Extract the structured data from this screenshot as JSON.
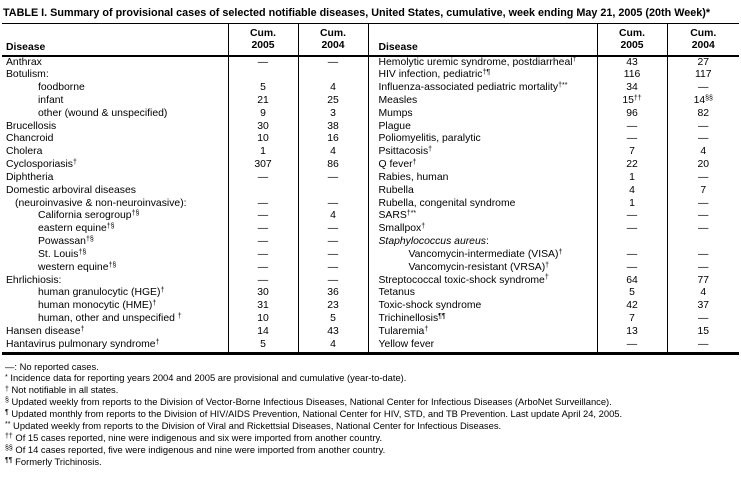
{
  "colors": {
    "text": "#000000",
    "background": "#ffffff",
    "border": "#000000"
  },
  "title": "TABLE I. Summary of provisional cases of selected notifiable diseases, United States, cumulative, week ending May 21, 2005 (20th Week)*",
  "header": {
    "disease": "Disease",
    "cum_label": "Cum.",
    "year_2005": "2005",
    "year_2004": "2004"
  },
  "rows": [
    {
      "left": {
        "name": "Anthrax",
        "sup": "",
        "indent": 0,
        "v05": "—",
        "v05sup": "",
        "v04": "—",
        "v04sup": ""
      },
      "right": {
        "name": "Hemolytic uremic syndrome, postdiarrheal",
        "sup": "†",
        "indent": 0,
        "v05": "43",
        "v05sup": "",
        "v04": "27",
        "v04sup": ""
      }
    },
    {
      "left": {
        "name": "Botulism:",
        "sup": "",
        "indent": 0,
        "v05": "",
        "v05sup": "",
        "v04": "",
        "v04sup": ""
      },
      "right": {
        "name": "HIV infection, pediatric",
        "sup": "†¶",
        "indent": 0,
        "v05": "116",
        "v05sup": "",
        "v04": "117",
        "v04sup": ""
      }
    },
    {
      "left": {
        "name": "foodborne",
        "sup": "",
        "indent": 2,
        "v05": "5",
        "v05sup": "",
        "v04": "4",
        "v04sup": ""
      },
      "right": {
        "name": "Influenza-associated pediatric mortality",
        "sup": "†**",
        "indent": 0,
        "v05": "34",
        "v05sup": "",
        "v04": "—",
        "v04sup": ""
      }
    },
    {
      "left": {
        "name": "infant",
        "sup": "",
        "indent": 2,
        "v05": "21",
        "v05sup": "",
        "v04": "25",
        "v04sup": ""
      },
      "right": {
        "name": "Measles",
        "sup": "",
        "indent": 0,
        "v05": "15",
        "v05sup": "††",
        "v04": "14",
        "v04sup": "§§"
      }
    },
    {
      "left": {
        "name": "other (wound & unspecified)",
        "sup": "",
        "indent": 2,
        "v05": "9",
        "v05sup": "",
        "v04": "3",
        "v04sup": ""
      },
      "right": {
        "name": "Mumps",
        "sup": "",
        "indent": 0,
        "v05": "96",
        "v05sup": "",
        "v04": "82",
        "v04sup": ""
      }
    },
    {
      "left": {
        "name": "Brucellosis",
        "sup": "",
        "indent": 0,
        "v05": "30",
        "v05sup": "",
        "v04": "38",
        "v04sup": ""
      },
      "right": {
        "name": "Plague",
        "sup": "",
        "indent": 0,
        "v05": "—",
        "v05sup": "",
        "v04": "—",
        "v04sup": ""
      }
    },
    {
      "left": {
        "name": "Chancroid",
        "sup": "",
        "indent": 0,
        "v05": "10",
        "v05sup": "",
        "v04": "16",
        "v04sup": ""
      },
      "right": {
        "name": "Poliomyelitis, paralytic",
        "sup": "",
        "indent": 0,
        "v05": "—",
        "v05sup": "",
        "v04": "—",
        "v04sup": ""
      }
    },
    {
      "left": {
        "name": "Cholera",
        "sup": "",
        "indent": 0,
        "v05": "1",
        "v05sup": "",
        "v04": "4",
        "v04sup": ""
      },
      "right": {
        "name": "Psittacosis",
        "sup": "†",
        "indent": 0,
        "v05": "7",
        "v05sup": "",
        "v04": "4",
        "v04sup": ""
      }
    },
    {
      "left": {
        "name": "Cyclosporiasis",
        "sup": "†",
        "indent": 0,
        "v05": "307",
        "v05sup": "",
        "v04": "86",
        "v04sup": ""
      },
      "right": {
        "name": "Q fever",
        "sup": "†",
        "indent": 0,
        "v05": "22",
        "v05sup": "",
        "v04": "20",
        "v04sup": ""
      }
    },
    {
      "left": {
        "name": "Diphtheria",
        "sup": "",
        "indent": 0,
        "v05": "—",
        "v05sup": "",
        "v04": "—",
        "v04sup": ""
      },
      "right": {
        "name": "Rabies, human",
        "sup": "",
        "indent": 0,
        "v05": "1",
        "v05sup": "",
        "v04": "—",
        "v04sup": ""
      }
    },
    {
      "left": {
        "name": "Domestic arboviral diseases",
        "sup": "",
        "indent": 0,
        "v05": "",
        "v05sup": "",
        "v04": "",
        "v04sup": ""
      },
      "right": {
        "name": "Rubella",
        "sup": "",
        "indent": 0,
        "v05": "4",
        "v05sup": "",
        "v04": "7",
        "v04sup": ""
      }
    },
    {
      "left": {
        "name": "(neuroinvasive & non-neuroinvasive):",
        "sup": "",
        "indent": 1,
        "v05": "—",
        "v05sup": "",
        "v04": "—",
        "v04sup": ""
      },
      "right": {
        "name": "Rubella, congenital syndrome",
        "sup": "",
        "indent": 0,
        "v05": "1",
        "v05sup": "",
        "v04": "—",
        "v04sup": ""
      }
    },
    {
      "left": {
        "name": "California serogroup",
        "sup": "†§",
        "indent": 2,
        "v05": "—",
        "v05sup": "",
        "v04": "4",
        "v04sup": ""
      },
      "right": {
        "name": "SARS",
        "sup": "†**",
        "indent": 0,
        "v05": "—",
        "v05sup": "",
        "v04": "—",
        "v04sup": ""
      }
    },
    {
      "left": {
        "name": "eastern equine",
        "sup": "†§",
        "indent": 2,
        "v05": "—",
        "v05sup": "",
        "v04": "—",
        "v04sup": ""
      },
      "right": {
        "name": "Smallpox",
        "sup": "†",
        "indent": 0,
        "v05": "—",
        "v05sup": "",
        "v04": "—",
        "v04sup": ""
      }
    },
    {
      "left": {
        "name": "Powassan",
        "sup": "†§",
        "indent": 2,
        "v05": "—",
        "v05sup": "",
        "v04": "—",
        "v04sup": ""
      },
      "right": {
        "name": "Staphylococcus aureus",
        "sup": "",
        "tail": ":",
        "italic": true,
        "indent": 0,
        "v05": "",
        "v05sup": "",
        "v04": "",
        "v04sup": ""
      }
    },
    {
      "left": {
        "name": "St. Louis",
        "sup": "†§",
        "indent": 2,
        "v05": "—",
        "v05sup": "",
        "v04": "—",
        "v04sup": ""
      },
      "right": {
        "name": "Vancomycin-intermediate (VISA)",
        "sup": "†",
        "indent": 2,
        "v05": "—",
        "v05sup": "",
        "v04": "—",
        "v04sup": ""
      }
    },
    {
      "left": {
        "name": "western equine",
        "sup": "†§",
        "indent": 2,
        "v05": "—",
        "v05sup": "",
        "v04": "—",
        "v04sup": ""
      },
      "right": {
        "name": "Vancomycin-resistant (VRSA)",
        "sup": "†",
        "indent": 2,
        "v05": "—",
        "v05sup": "",
        "v04": "—",
        "v04sup": ""
      }
    },
    {
      "left": {
        "name": "Ehrlichiosis:",
        "sup": "",
        "indent": 0,
        "v05": "—",
        "v05sup": "",
        "v04": "—",
        "v04sup": ""
      },
      "right": {
        "name": "Streptococcal toxic-shock syndrome",
        "sup": "†",
        "indent": 0,
        "v05": "64",
        "v05sup": "",
        "v04": "77",
        "v04sup": ""
      }
    },
    {
      "left": {
        "name": "human granulocytic (HGE)",
        "sup": "†",
        "indent": 2,
        "v05": "30",
        "v05sup": "",
        "v04": "36",
        "v04sup": ""
      },
      "right": {
        "name": "Tetanus",
        "sup": "",
        "indent": 0,
        "v05": "5",
        "v05sup": "",
        "v04": "4",
        "v04sup": ""
      }
    },
    {
      "left": {
        "name": "human monocytic (HME)",
        "sup": "†",
        "indent": 2,
        "v05": "31",
        "v05sup": "",
        "v04": "23",
        "v04sup": ""
      },
      "right": {
        "name": "Toxic-shock syndrome",
        "sup": "",
        "indent": 0,
        "v05": "42",
        "v05sup": "",
        "v04": "37",
        "v04sup": ""
      }
    },
    {
      "left": {
        "name": "human, other and unspecified ",
        "sup": "†",
        "indent": 2,
        "v05": "10",
        "v05sup": "",
        "v04": "5",
        "v04sup": ""
      },
      "right": {
        "name": "Trichinellosis",
        "sup": "¶¶",
        "indent": 0,
        "v05": "7",
        "v05sup": "",
        "v04": "—",
        "v04sup": ""
      }
    },
    {
      "left": {
        "name": "Hansen disease",
        "sup": "†",
        "indent": 0,
        "v05": "14",
        "v05sup": "",
        "v04": "43",
        "v04sup": ""
      },
      "right": {
        "name": "Tularemia",
        "sup": "†",
        "indent": 0,
        "v05": "13",
        "v05sup": "",
        "v04": "15",
        "v04sup": ""
      }
    },
    {
      "left": {
        "name": "Hantavirus pulmonary syndrome",
        "sup": "†",
        "indent": 0,
        "v05": "5",
        "v05sup": "",
        "v04": "4",
        "v04sup": ""
      },
      "right": {
        "name": "Yellow fever",
        "sup": "",
        "indent": 0,
        "v05": "—",
        "v05sup": "",
        "v04": "—",
        "v04sup": ""
      }
    }
  ],
  "footnotes": [
    {
      "marker": "—:",
      "superscript": false,
      "text": "No reported cases."
    },
    {
      "marker": "*",
      "superscript": true,
      "text": "Incidence data for reporting years 2004 and 2005 are provisional and cumulative (year-to-date)."
    },
    {
      "marker": "†",
      "superscript": true,
      "text": "Not notifiable in all states."
    },
    {
      "marker": "§",
      "superscript": true,
      "text": "Updated weekly from reports to the Division of Vector-Borne Infectious Diseases, National Center for Infectious Diseases (ArboNet Surveillance)."
    },
    {
      "marker": "¶",
      "superscript": true,
      "text": "Updated monthly from reports to the Division of HIV/AIDS Prevention, National Center for HIV, STD, and TB Prevention. Last update April 24, 2005."
    },
    {
      "marker": "**",
      "superscript": true,
      "text": "Updated weekly from reports to the Division of Viral and Rickettsial Diseases, National Center for Infectious Diseases."
    },
    {
      "marker": "††",
      "superscript": true,
      "text": "Of 15 cases reported, nine were indigenous and six were imported from another country."
    },
    {
      "marker": "§§",
      "superscript": true,
      "text": "Of 14 cases reported, five were indigenous and nine were imported from another country."
    },
    {
      "marker": "¶¶",
      "superscript": true,
      "text": "Formerly Trichinosis."
    }
  ]
}
